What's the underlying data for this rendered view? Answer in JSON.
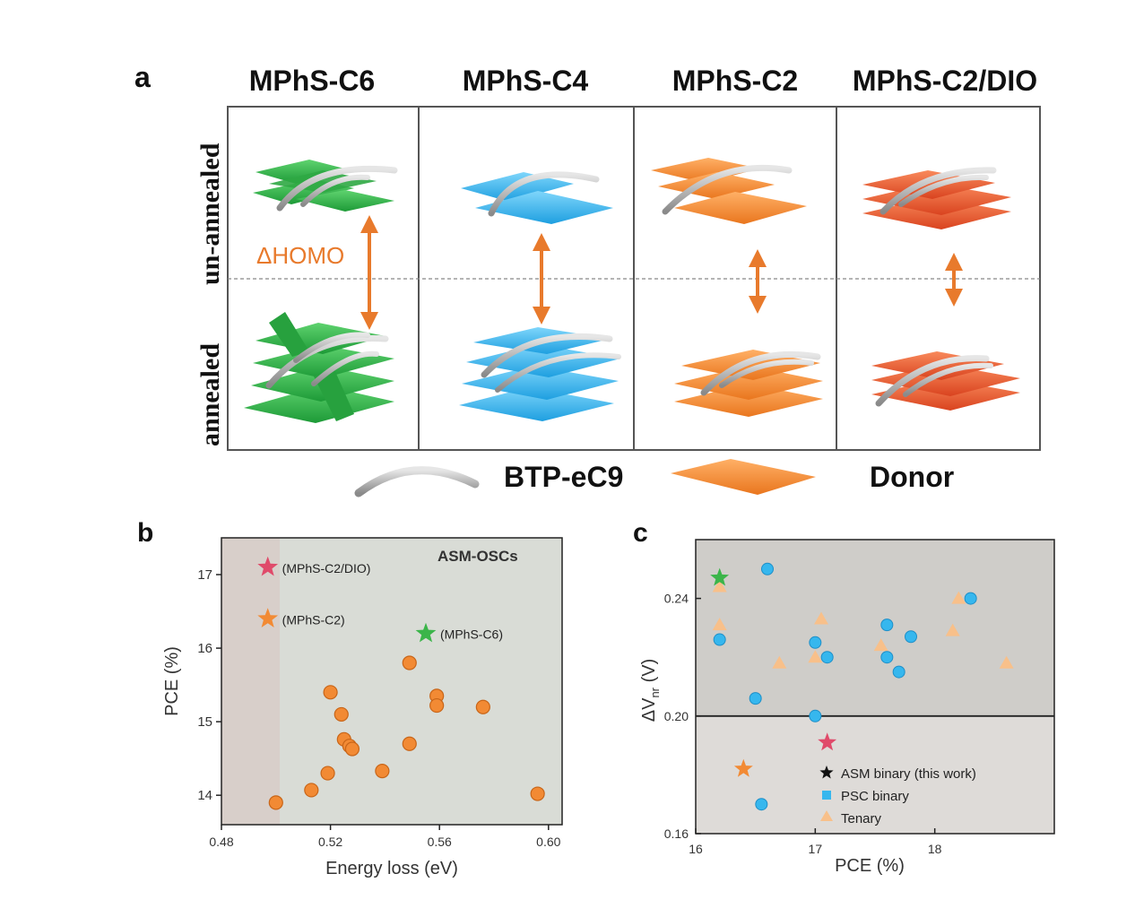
{
  "panel_a": {
    "letter": "a",
    "columns": [
      "MPhS-C6",
      "MPhS-C4",
      "MPhS-C2",
      "MPhS-C2/DIO"
    ],
    "rows": [
      "un-annealed",
      "annealed"
    ],
    "delta_label": "ΔHOMO",
    "legend_acceptor": "BTP-eC9",
    "legend_donor": "Donor",
    "colors": {
      "c6": "#2fb84a",
      "c4": "#36b7ee",
      "c2": "#f28a34",
      "dio": "#e8562e",
      "arrow": "#e87a2c"
    }
  },
  "panel_b": {
    "letter": "b"
  },
  "panel_c": {
    "letter": "c"
  },
  "chart_data": [
    {
      "type": "scatter",
      "title": "",
      "xlabel": "Energy loss (eV)",
      "ylabel": "PCE (%)",
      "xlim": [
        0.48,
        0.605
      ],
      "ylim": [
        13.6,
        17.5
      ],
      "xticks": [
        "0.48",
        "0.52",
        "0.56",
        "0.60"
      ],
      "yticks": [
        "14",
        "15",
        "16",
        "17"
      ],
      "annotation": "ASM-OSCs",
      "highlights": [
        {
          "label": "(MPhS-C2/DIO)",
          "x": 0.497,
          "y": 17.1,
          "color": "#e04a6a"
        },
        {
          "label": "(MPhS-C2)",
          "x": 0.497,
          "y": 16.4,
          "color": "#f28a34"
        },
        {
          "label": "(MPhS-C6)",
          "x": 0.555,
          "y": 16.2,
          "color": "#3bb54a"
        }
      ],
      "series": [
        {
          "x": [
            0.5,
            0.513,
            0.519,
            0.52,
            0.524,
            0.525,
            0.527,
            0.528,
            0.539,
            0.549,
            0.549,
            0.559,
            0.559,
            0.576,
            0.596
          ],
          "y": [
            13.9,
            14.07,
            14.3,
            15.4,
            15.1,
            14.76,
            14.67,
            14.63,
            14.33,
            14.7,
            15.8,
            15.35,
            15.22,
            15.2,
            14.02
          ],
          "color": "#f28a34"
        }
      ]
    },
    {
      "type": "scatter",
      "title": "",
      "xlabel": "PCE (%)",
      "ylabel": "ΔV_nr (V)",
      "xlim": [
        16,
        19
      ],
      "ylim": [
        0.16,
        0.26
      ],
      "xticks": [
        "16",
        "17",
        "18"
      ],
      "yticks": [
        "0.16",
        "0.20",
        "0.24"
      ],
      "threshold_y": 0.2,
      "series": [
        {
          "name": "ASM binary (this work)",
          "marker": "star",
          "points": [
            {
              "x": 16.2,
              "y": 0.247,
              "color": "#3bb54a"
            },
            {
              "x": 16.4,
              "y": 0.182,
              "color": "#f28a34"
            },
            {
              "x": 17.1,
              "y": 0.191,
              "color": "#e04a6a"
            }
          ]
        },
        {
          "name": "PSC binary",
          "marker": "circle",
          "color": "#36b7ee",
          "x": [
            16.2,
            16.5,
            16.55,
            16.6,
            17.0,
            17.0,
            17.1,
            17.6,
            17.6,
            17.7,
            17.8,
            18.3
          ],
          "y": [
            0.226,
            0.206,
            0.17,
            0.25,
            0.225,
            0.2,
            0.22,
            0.231,
            0.22,
            0.215,
            0.227,
            0.24
          ]
        },
        {
          "name": "Tenary",
          "marker": "triangle",
          "color": "#f8c08a",
          "x": [
            16.2,
            16.2,
            16.7,
            17.0,
            17.05,
            17.55,
            18.15,
            18.2,
            18.6
          ],
          "y": [
            0.244,
            0.231,
            0.218,
            0.22,
            0.233,
            0.224,
            0.229,
            0.24,
            0.218
          ]
        }
      ]
    }
  ]
}
